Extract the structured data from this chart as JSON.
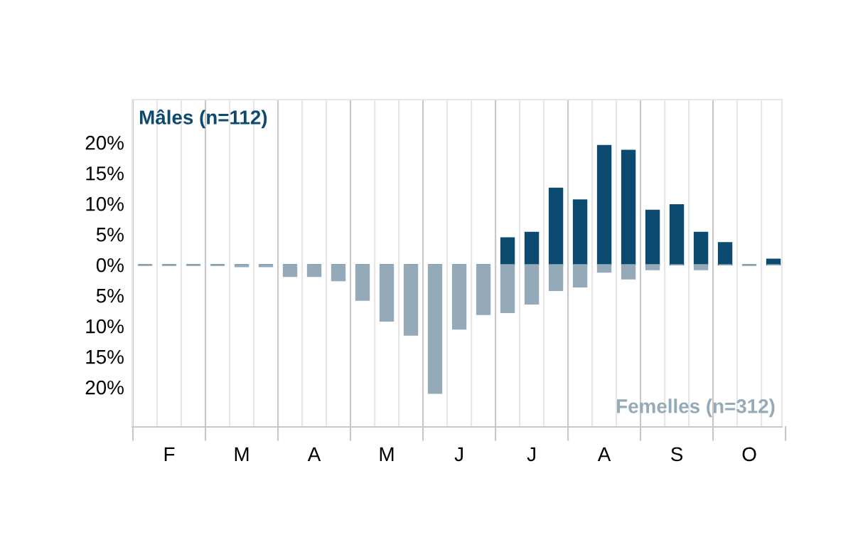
{
  "chart_data": {
    "type": "bar",
    "categories": [
      null,
      "F",
      null,
      null,
      "M",
      null,
      null,
      "A",
      null,
      null,
      "M",
      null,
      null,
      "J",
      null,
      null,
      "J",
      null,
      null,
      "A",
      null,
      null,
      "S",
      null,
      null,
      "O",
      null
    ],
    "series": [
      {
        "name": "Mâles (n=112)",
        "color": "#0d4a70",
        "values": [
          0,
          0,
          0,
          0,
          0,
          0,
          0,
          0,
          0,
          0,
          0,
          0,
          0,
          0,
          0,
          4.4,
          5.3,
          12.5,
          10.6,
          19.5,
          18.7,
          8.9,
          9.8,
          5.3,
          3.6,
          0,
          0.9
        ]
      },
      {
        "name": "Femelles (n=312)",
        "color": "#95aab8",
        "values": [
          -0.1,
          -0.1,
          -0.1,
          -0.1,
          -0.3,
          -0.3,
          -1.9,
          -1.9,
          -2.6,
          -5.8,
          -9.2,
          -11.5,
          -21.0,
          -10.5,
          -8.1,
          -7.8,
          -6.4,
          -4.2,
          -3.6,
          -1.2,
          -2.3,
          -0.8,
          0,
          -0.8,
          0,
          -0.1,
          0
        ]
      }
    ],
    "ylim": [
      -26.5,
      27
    ],
    "yticks": [
      {
        "value": 20,
        "label": "20%"
      },
      {
        "value": 15,
        "label": "15%"
      },
      {
        "value": 10,
        "label": "10%"
      },
      {
        "value": 5,
        "label": "5%"
      },
      {
        "value": 0,
        "label": "0%"
      },
      {
        "value": -5,
        "label": "5%"
      },
      {
        "value": -10,
        "label": "10%"
      },
      {
        "value": -15,
        "label": "15%"
      },
      {
        "value": -20,
        "label": "20%"
      }
    ],
    "grid": "x",
    "legend": false
  }
}
